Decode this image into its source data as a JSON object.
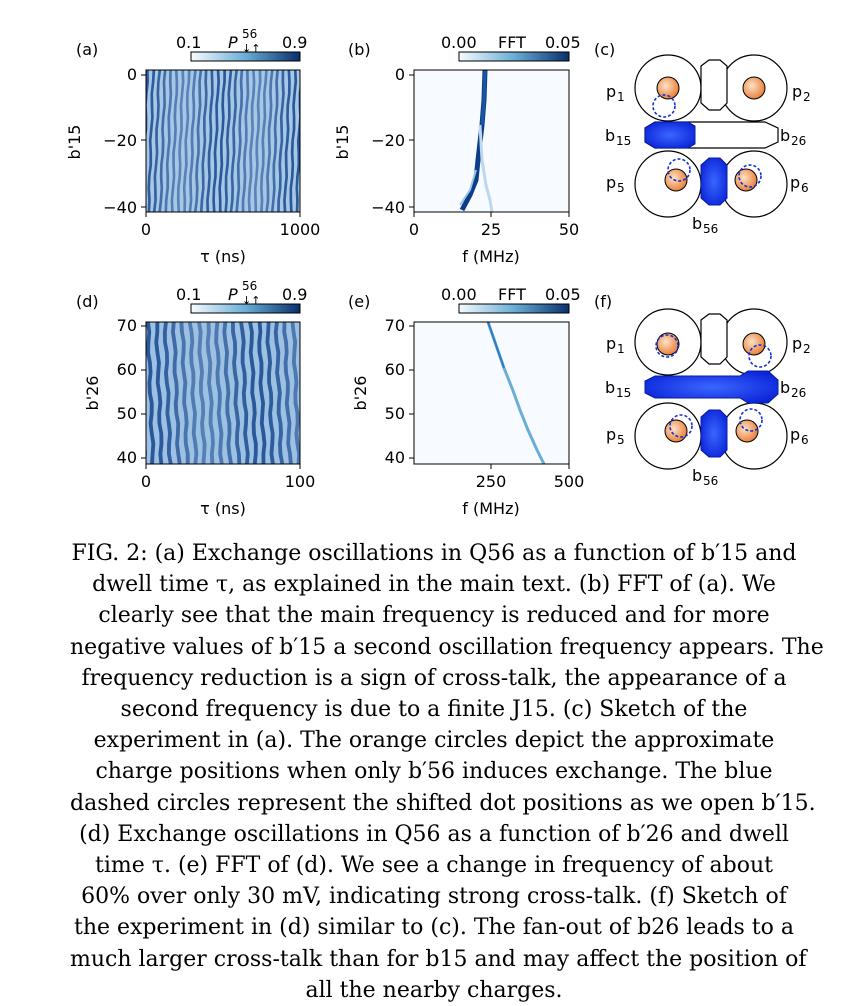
{
  "figure": {
    "panel_labels": [
      "(a)",
      "(b)",
      "(c)",
      "(d)",
      "(e)",
      "(f)"
    ],
    "colorbars": {
      "prob": {
        "min": "0.1",
        "max": "0.9",
        "label_main": "P",
        "label_sup": "56",
        "label_sub": "↓↑"
      },
      "fft": {
        "min": "0.00",
        "max": "0.05",
        "label": "FFT"
      }
    },
    "sketch_labels": {
      "p1": "p",
      "p2": "p",
      "p5": "p",
      "p6": "p",
      "sub1": "1",
      "sub2": "2",
      "sub5": "5",
      "sub6": "6",
      "b15": "b",
      "b26": "b",
      "b56": "b",
      "sub15": "15",
      "sub26": "26",
      "sub56": "56"
    },
    "colors": {
      "map": "#1a55a5",
      "map_light": "#eaf2fb",
      "blue_gate": "#1130f0",
      "orange": "#f29a5f"
    }
  },
  "chart_data": [
    {
      "type": "heatmap",
      "panel": "(a)",
      "title": "",
      "xlabel": "τ (ns)",
      "ylabel": "b'15",
      "xlim": [
        0,
        1000
      ],
      "ylim": [
        -42,
        1
      ],
      "xticks": [
        "0",
        "1000"
      ],
      "yticks": [
        "0",
        "−20",
        "−40"
      ],
      "colorbar": [
        0.1,
        0.9
      ]
    },
    {
      "type": "heatmap",
      "panel": "(b)",
      "title": "",
      "xlabel": "f (MHz)",
      "ylabel": "b'15",
      "xlim": [
        0,
        50
      ],
      "ylim": [
        -42,
        1
      ],
      "xticks": [
        "0",
        "25",
        "50"
      ],
      "yticks": [
        "0",
        "−20",
        "−40"
      ],
      "colorbar": [
        0.0,
        0.05
      ]
    },
    {
      "type": "heatmap",
      "panel": "(d)",
      "title": "",
      "xlabel": "τ (ns)",
      "ylabel": "b'26",
      "xlim": [
        0,
        100
      ],
      "ylim": [
        39,
        71
      ],
      "xticks": [
        "0",
        "100"
      ],
      "yticks": [
        "70",
        "60",
        "50",
        "40"
      ],
      "colorbar": [
        0.1,
        0.9
      ]
    },
    {
      "type": "heatmap",
      "panel": "(e)",
      "title": "",
      "xlabel": "f (MHz)",
      "ylabel": "b'26",
      "xlim": [
        90,
        500
      ],
      "ylim": [
        39,
        71
      ],
      "xticks": [
        "250",
        "500"
      ],
      "yticks": [
        "70",
        "60",
        "50",
        "40"
      ],
      "colorbar": [
        0.0,
        0.05
      ]
    }
  ],
  "caption": {
    "lines": [
      "FIG. 2: (a) Exchange oscillations in Q56 as a function of b′15 and",
      "dwell time τ, as explained in the main text. (b) FFT of (a). We",
      "clearly see that the main frequency is reduced and for more",
      "negative values of b′15 a second oscillation frequency appears. The",
      "frequency reduction is a sign of cross-talk, the appearance of a",
      "second frequency is due to a finite J15. (c) Sketch of the",
      "experiment in (a). The orange circles depict the approximate",
      "charge positions when only b′56 induces exchange. The blue",
      "dashed circles represent the shifted dot positions as we open b′15.",
      "(d) Exchange oscillations in Q56 as a function of b′26 and dwell",
      "time τ. (e) FFT of (d). We see a change in frequency of about",
      "60% over only 30 mV, indicating strong cross-talk. (f) Sketch of",
      "the experiment in (d) similar to (c). The fan-out of b26 leads to a",
      "much larger cross-talk than for b15 and may affect the position of",
      "all the nearby charges."
    ]
  }
}
